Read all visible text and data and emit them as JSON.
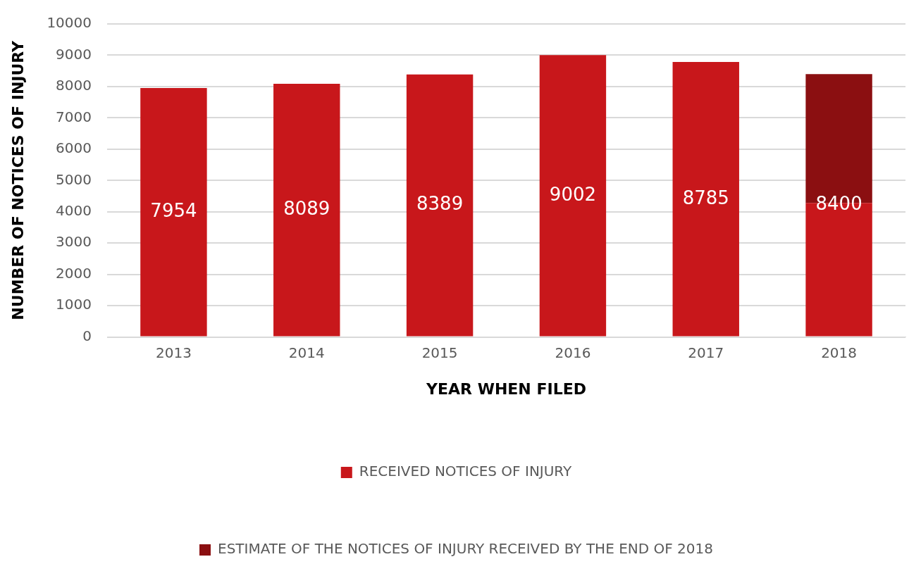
{
  "chart_data": {
    "type": "bar",
    "stacked": true,
    "xlabel": "YEAR WHEN FILED",
    "ylabel": "NUMBER OF NOTICES OF INJURY",
    "categories": [
      "2013",
      "2014",
      "2015",
      "2016",
      "2017",
      "2018"
    ],
    "series": [
      {
        "name": "RECEIVED NOTICES OF INJURY",
        "color": "#c8171b",
        "values": [
          7954,
          8089,
          8389,
          9002,
          8785,
          4280
        ],
        "value_labels": [
          "7954",
          "8089",
          "8389",
          "9002",
          "8785",
          null
        ]
      },
      {
        "name": "ESTIMATE OF THE NOTICES OF INJURY RECEIVED BY THE END OF 2018",
        "color": "#8b0f11",
        "values": [
          null,
          null,
          null,
          null,
          null,
          4120
        ]
      }
    ],
    "totals": [
      null,
      null,
      null,
      null,
      null,
      "8400"
    ],
    "ylim": [
      0,
      10000
    ],
    "yticks": [
      0,
      1000,
      2000,
      3000,
      4000,
      5000,
      6000,
      7000,
      8000,
      9000,
      10000
    ],
    "grid": "y",
    "legend": "bottom"
  }
}
